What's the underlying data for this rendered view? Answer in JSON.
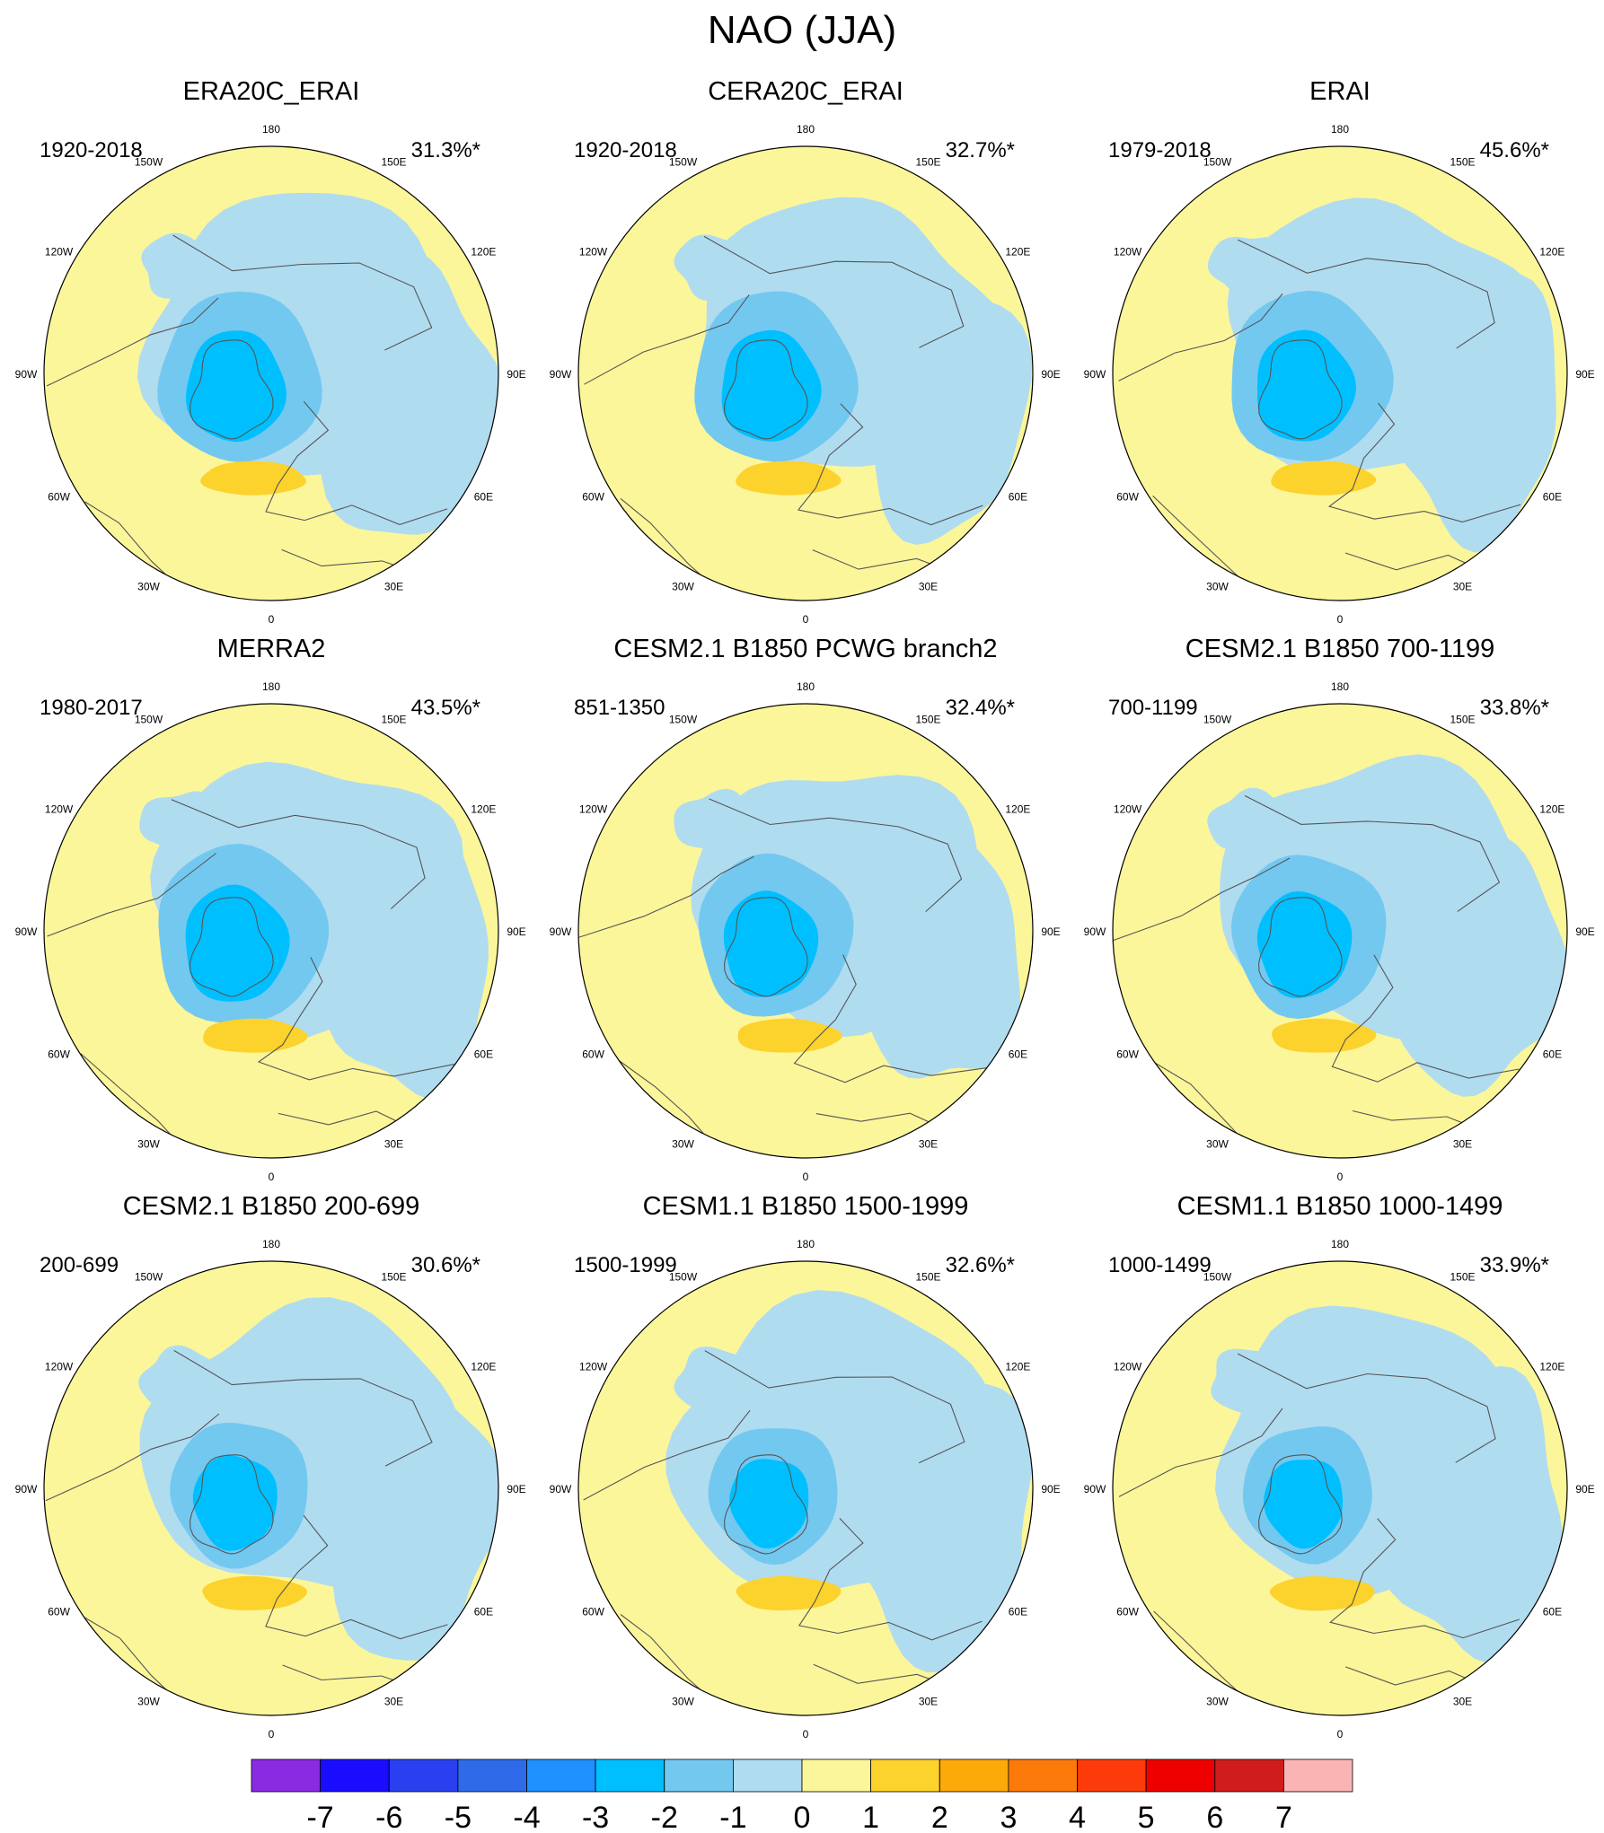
{
  "figure": {
    "title": "NAO (JJA)",
    "lon_labels": [
      "180",
      "150E",
      "120E",
      "90E",
      "60E",
      "30E",
      "0",
      "30W",
      "60W",
      "90W",
      "120W",
      "150W"
    ]
  },
  "panels": [
    {
      "title": "ERA20C_ERAI",
      "period": "1920-2018",
      "variance": "31.3%*",
      "blue_extent": 1.05,
      "core": 1.0
    },
    {
      "title": "CERA20C_ERAI",
      "period": "1920-2018",
      "variance": "32.7%*",
      "blue_extent": 1.0,
      "core": 1.0
    },
    {
      "title": "ERAI",
      "period": "1979-2018",
      "variance": "45.6%*",
      "blue_extent": 1.0,
      "core": 1.0
    },
    {
      "title": "MERRA2",
      "period": "1980-2017",
      "variance": "43.5%*",
      "blue_extent": 1.0,
      "core": 1.05
    },
    {
      "title": "CESM2.1 B1850 PCWG branch2",
      "period": "851-1350",
      "variance": "32.4%*",
      "blue_extent": 0.95,
      "core": 0.95
    },
    {
      "title": "CESM2.1 B1850 700-1199",
      "period": "700-1199",
      "variance": "33.8%*",
      "blue_extent": 1.0,
      "core": 0.95
    },
    {
      "title": "CESM2.1 B1850 200-699",
      "period": "200-699",
      "variance": "30.6%*",
      "blue_extent": 1.05,
      "core": 0.85
    },
    {
      "title": "CESM1.1 B1850 1500-1999",
      "period": "1500-1999",
      "variance": "32.6%*",
      "blue_extent": 1.1,
      "core": 0.8
    },
    {
      "title": "CESM1.1 B1850 1000-1499",
      "period": "1000-1499",
      "variance": "33.9%*",
      "blue_extent": 1.05,
      "core": 0.8
    }
  ],
  "colorbar": {
    "labels": [
      "-7",
      "-6",
      "-5",
      "-4",
      "-3",
      "-2",
      "-1",
      "0",
      "1",
      "2",
      "3",
      "4",
      "5",
      "6",
      "7"
    ],
    "colors": [
      "#8a2be2",
      "#1a0dff",
      "#2a3ff0",
      "#2f6ae8",
      "#1e90ff",
      "#00bfff",
      "#73c8f0",
      "#b0dcf0",
      "#fcf69a",
      "#fcd22c",
      "#fca90a",
      "#fc7a0a",
      "#fc3a0a",
      "#ee0000",
      "#d01c1c",
      "#fbb4b4"
    ]
  },
  "colors": {
    "positive_weak": "#fcf69a",
    "negative_weak": "#b0dcf0",
    "negative_mid": "#73c8f0",
    "negative_strong": "#00bfff",
    "positive_mid": "#fcd22c",
    "coastline": "#555555"
  }
}
